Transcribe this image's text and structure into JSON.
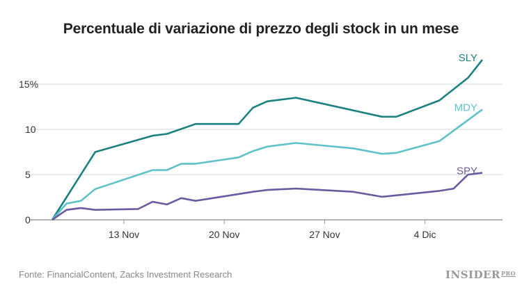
{
  "chart_data": {
    "type": "line",
    "title": "Percentuale di variazione di prezzo degli stock in un mese",
    "xlabel": "",
    "ylabel": "",
    "ylim": [
      0,
      18
    ],
    "yticks": [
      0,
      5,
      10,
      15
    ],
    "ytick_labels": [
      "0",
      "5",
      "10",
      "15%"
    ],
    "xticks": [
      "13 Nov",
      "20 Nov",
      "27 Nov",
      "4 Dic"
    ],
    "grid": true,
    "legend": "inline labels at line ends",
    "series": [
      {
        "name": "SLY",
        "color": "#1b8080",
        "points": [
          [
            "8 Nov",
            0
          ],
          [
            "11 Nov",
            7.5
          ],
          [
            "15 Nov",
            9.3
          ],
          [
            "16 Nov",
            9.5
          ],
          [
            "18 Nov",
            10.6
          ],
          [
            "21 Nov",
            10.6
          ],
          [
            "22 Nov",
            12.4
          ],
          [
            "23 Nov",
            13.1
          ],
          [
            "25 Nov",
            13.5
          ],
          [
            "1 Dic",
            11.4
          ],
          [
            "2 Dic",
            11.4
          ],
          [
            "5 Dic",
            13.2
          ],
          [
            "7 Dic",
            15.7
          ],
          [
            "8 Dic",
            17.7
          ]
        ]
      },
      {
        "name": "MDY",
        "color": "#5fc1c9",
        "points": [
          [
            "8 Nov",
            0
          ],
          [
            "9 Nov",
            1.8
          ],
          [
            "10 Nov",
            2.1
          ],
          [
            "11 Nov",
            3.4
          ],
          [
            "15 Nov",
            5.5
          ],
          [
            "16 Nov",
            5.5
          ],
          [
            "17 Nov",
            6.2
          ],
          [
            "18 Nov",
            6.2
          ],
          [
            "21 Nov",
            6.9
          ],
          [
            "22 Nov",
            7.6
          ],
          [
            "23 Nov",
            8.1
          ],
          [
            "25 Nov",
            8.5
          ],
          [
            "29 Nov",
            7.9
          ],
          [
            "1 Dic",
            7.3
          ],
          [
            "2 Dic",
            7.4
          ],
          [
            "5 Dic",
            8.7
          ],
          [
            "8 Dic",
            12.2
          ]
        ]
      },
      {
        "name": "SPY",
        "color": "#6b5a9f",
        "points": [
          [
            "8 Nov",
            0
          ],
          [
            "9 Nov",
            1.1
          ],
          [
            "10 Nov",
            1.3
          ],
          [
            "11 Nov",
            1.1
          ],
          [
            "14 Nov",
            1.2
          ],
          [
            "15 Nov",
            2.0
          ],
          [
            "16 Nov",
            1.7
          ],
          [
            "17 Nov",
            2.4
          ],
          [
            "18 Nov",
            2.1
          ],
          [
            "22 Nov",
            3.1
          ],
          [
            "23 Nov",
            3.3
          ],
          [
            "25 Nov",
            3.45
          ],
          [
            "29 Nov",
            3.1
          ],
          [
            "1 Dic",
            2.55
          ],
          [
            "5 Dic",
            3.2
          ],
          [
            "6 Dic",
            3.45
          ],
          [
            "7 Dic",
            5.0
          ],
          [
            "8 Dic",
            5.2
          ]
        ]
      }
    ]
  },
  "footer": {
    "source": "Fonte: FinancialContent, Zacks Investment Research",
    "logo": "INSIDER",
    "logo_sup": "PRO"
  },
  "colors": {
    "grid": "#e3e3e3",
    "axis": "#999999",
    "text": "#333333"
  }
}
